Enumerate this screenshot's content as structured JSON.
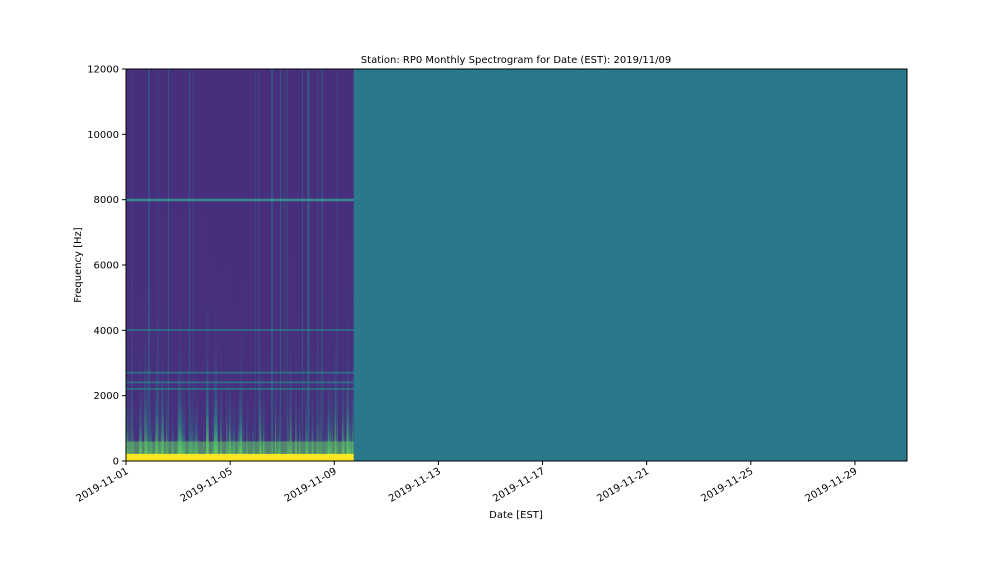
{
  "chart_data": {
    "type": "heatmap",
    "title": "Station: RP0 Monthly Spectrogram for Date (EST): 2019/11/09",
    "xlabel": "Date [EST]",
    "ylabel": "Frequency [Hz]",
    "x_range": [
      "2019-11-01",
      "2019-12-01"
    ],
    "data_end_date": "2019-11-09 18:00",
    "ylim": [
      0,
      12000
    ],
    "x_ticks": [
      "2019-11-01",
      "2019-11-05",
      "2019-11-09",
      "2019-11-13",
      "2019-11-17",
      "2019-11-21",
      "2019-11-25",
      "2019-11-29"
    ],
    "y_ticks": [
      0,
      2000,
      4000,
      6000,
      8000,
      10000,
      12000
    ],
    "colormap": "viridis",
    "background_color": "#2b778c",
    "horizontal_bands_hz": [
      8000,
      4000,
      2700,
      2400,
      2200
    ],
    "colors": {
      "low": "#472f7d",
      "mid": "#21918c",
      "high": "#5ec962",
      "peak": "#fde725"
    }
  }
}
